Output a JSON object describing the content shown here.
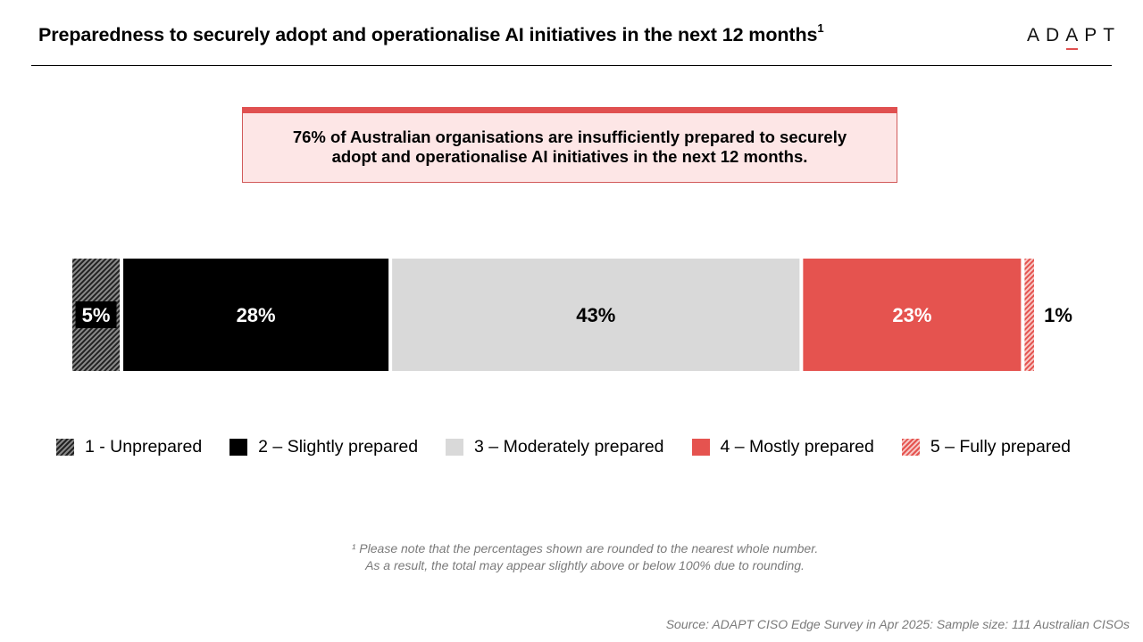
{
  "header": {
    "title": "Preparedness to securely adopt and operationalise AI initiatives in the next 12 months",
    "title_footnote_mark": "1",
    "logo_text": "ADAPT"
  },
  "callout": {
    "text": "76% of Australian organisations are insufficiently prepared to securely adopt and operationalise AI initiatives in the next 12  months."
  },
  "chart_data": {
    "type": "bar",
    "orientation": "horizontal-stacked-100",
    "categories": [
      "1 - Unprepared",
      "2 – Slightly prepared",
      "3 – Moderately prepared",
      "4 – Mostly prepared",
      "5 – Fully prepared"
    ],
    "values": [
      5,
      28,
      43,
      23,
      1
    ],
    "labels": [
      "5%",
      "28%",
      "43%",
      "23%",
      "1%"
    ],
    "colors": [
      "#333333",
      "#000000",
      "#d9d9d9",
      "#e5534f",
      "#e5534f"
    ],
    "patterns": [
      "hatched-dark",
      "solid",
      "solid",
      "solid",
      "hatched-red"
    ],
    "label_colors": [
      "#ffffff",
      "#ffffff",
      "#000000",
      "#ffffff",
      "#000000"
    ],
    "legend_position": "bottom"
  },
  "legend": [
    {
      "label": "1 - Unprepared"
    },
    {
      "label": "2 – Slightly prepared"
    },
    {
      "label": "3 – Moderately prepared"
    },
    {
      "label": "4 – Mostly prepared"
    },
    {
      "label": "5 – Fully prepared"
    }
  ],
  "footnote": {
    "line1": "¹ Please note that the percentages shown are rounded to the nearest whole number.",
    "line2": "As a result, the total may appear slightly above or below 100% due to rounding."
  },
  "source": "Source: ADAPT CISO Edge Survey in Apr 2025: Sample size: 111 Australian CISOs"
}
